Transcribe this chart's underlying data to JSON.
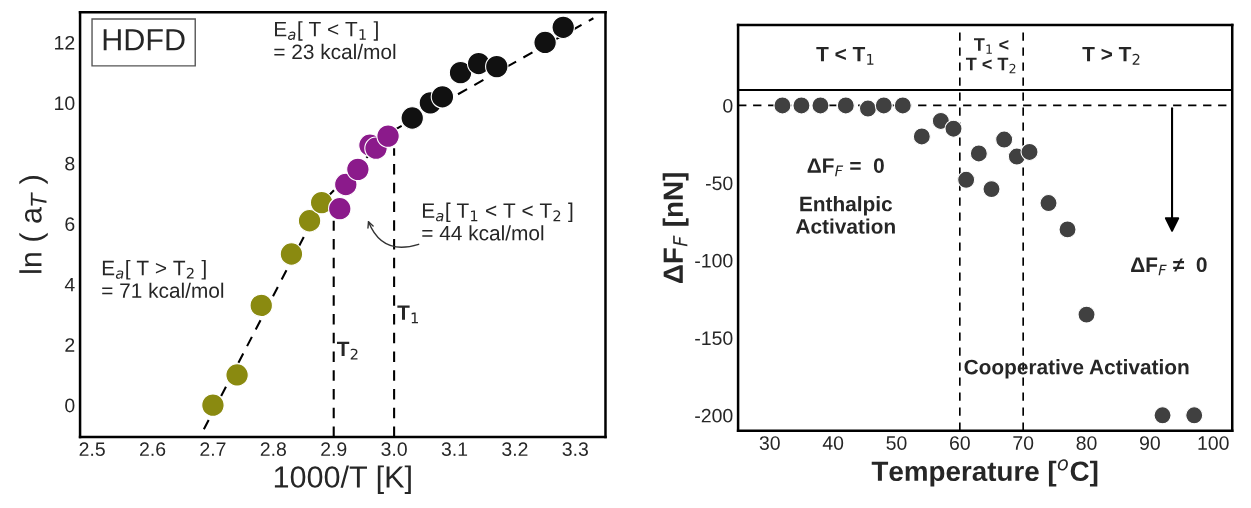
{
  "chart_data": [
    {
      "type": "scatter",
      "xlabel": "1000/T [K]",
      "ylabel": "ln ( a$_{T}$ )",
      "marker": "circle",
      "xlim": [
        2.48,
        3.35
      ],
      "ylim": [
        -1.05,
        13.0
      ],
      "xticks": [
        {
          "value": 2.5,
          "label": "2.5"
        },
        {
          "value": 2.6,
          "label": "2.6"
        },
        {
          "value": 2.7,
          "label": "2.7"
        },
        {
          "value": 2.8,
          "label": "2.8"
        },
        {
          "value": 2.9,
          "label": "2.9"
        },
        {
          "value": 3.0,
          "label": "3.0"
        },
        {
          "value": 3.1,
          "label": "3.1"
        },
        {
          "value": 3.2,
          "label": "3.2"
        },
        {
          "value": 3.3,
          "label": "3.3"
        }
      ],
      "yticks": [
        0,
        2,
        4,
        6,
        8,
        10,
        12
      ],
      "series": [
        {
          "type": "line",
          "line_style": "dashed",
          "marker": "none",
          "color": "#000000",
          "x": [
            2.685,
            2.88,
            3.0,
            3.33
          ],
          "values": [
            -0.8,
            6.7,
            9.1,
            12.8
          ]
        },
        {
          "type": "line",
          "line_style": "dashed",
          "marker": "none",
          "color": "#000000",
          "x": [
            2.9,
            2.9
          ],
          "values": [
            -1.05,
            6.1
          ]
        },
        {
          "type": "line",
          "line_style": "dashed",
          "marker": "none",
          "color": "#000000",
          "x": [
            3.0,
            3.0
          ],
          "values": [
            -1.05,
            8.5
          ]
        },
        {
          "color": "#8a8a10",
          "x": [
            2.7,
            2.74,
            2.78,
            2.83,
            2.86,
            2.88
          ],
          "values": [
            0.0,
            1.0,
            3.3,
            5.0,
            6.1,
            6.7
          ]
        },
        {
          "color": "#8b1a8b",
          "x": [
            2.91,
            2.92,
            2.94,
            2.96,
            2.97,
            2.99
          ],
          "values": [
            6.5,
            7.3,
            7.8,
            8.6,
            8.5,
            8.9
          ]
        },
        {
          "color": "#111111",
          "x": [
            3.03,
            3.06,
            3.08,
            3.11,
            3.14,
            3.17,
            3.25,
            3.28
          ],
          "values": [
            9.5,
            10.0,
            10.2,
            11.0,
            11.3,
            11.2,
            12.0,
            12.5
          ]
        }
      ],
      "annotations": [
        "HDFD",
        "E$_{a}$[ T < T$_{1}$ ]\n= 23 kcal/mol",
        "E$_{a}$[ T$_{1}$ < T < T$_{2}$ ]\n= 44 kcal/mol",
        "E$_{a}$[ T > T$_{2}$ ]\n= 71 kcal/mol",
        {
          "text": "T$_{2}$",
          "x": 2.9,
          "y": 1.8
        },
        {
          "text": "T$_{1}$",
          "x": 3.0,
          "y": 3.0
        }
      ]
    },
    {
      "type": "scatter",
      "xlabel": "Temperature [$^{o}$C]",
      "ylabel": "ΔF$_{F}$ [nN]",
      "marker": "circle",
      "xlim": [
        25,
        103
      ],
      "ylim": [
        -210,
        52
      ],
      "xticks": [
        30,
        40,
        50,
        60,
        70,
        80,
        90,
        100
      ],
      "yticks": [
        {
          "value": 0,
          "label": "0"
        },
        {
          "value": -50,
          "label": "-50"
        },
        {
          "value": -100,
          "label": "-100"
        },
        {
          "value": -150,
          "label": "-150"
        },
        {
          "value": -200,
          "label": "-200"
        }
      ],
      "series": [
        {
          "color": "#404040",
          "x": [
            32,
            35,
            38,
            42,
            45.5,
            48,
            51,
            54,
            57,
            59,
            61,
            63,
            65,
            67,
            69,
            71,
            74,
            77,
            80,
            92,
            97
          ],
          "values": [
            0,
            0,
            0,
            0,
            -2,
            0,
            0,
            -20,
            -10,
            -15,
            -48,
            -31,
            -54,
            -22,
            -33,
            -30,
            -63,
            -80,
            -135,
            -200,
            -200
          ]
        }
      ],
      "ref_lines": [
        {
          "axis": "y",
          "value": 10,
          "line_style": "solid"
        },
        {
          "axis": "y",
          "value": 0,
          "line_style": "dashed"
        },
        {
          "axis": "x",
          "value": 60,
          "line_style": "dashed"
        },
        {
          "axis": "x",
          "value": 70,
          "line_style": "dashed"
        }
      ],
      "annotations": [
        "T < T$_{1}$",
        "T$_{1}$ <\nT < T$_{2}$",
        "T > T$_{2}$",
        "ΔF$_{F}$ =  0",
        "Enthalpic\nActivation",
        "ΔF$_{F}$ ≠  0",
        "Cooperative Activation"
      ]
    }
  ]
}
